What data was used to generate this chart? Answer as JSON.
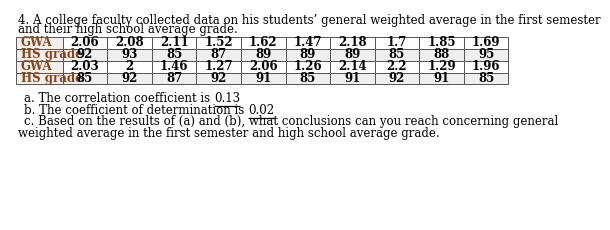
{
  "title_line1": "4. A college faculty collected data on his students’ general weighted average in the first semester",
  "title_line2": "and their high school average grade.",
  "row1_label": "GWA",
  "row2_label": "HS grade",
  "row3_label": "GWA",
  "row4_label": "HS grade",
  "row1_values": [
    "2.06",
    "2.08",
    "2.11",
    "1.52",
    "1.62",
    "1.47",
    "2.18",
    "1.7",
    "1.85",
    "1.69"
  ],
  "row2_values": [
    "92",
    "93",
    "85",
    "87",
    "89",
    "89",
    "89",
    "85",
    "88",
    "95"
  ],
  "row3_values": [
    "2.03",
    "2",
    "1.46",
    "1.27",
    "2.06",
    "1.26",
    "2.14",
    "2.2",
    "1.29",
    "1.96"
  ],
  "row4_values": [
    "85",
    "92",
    "87",
    "92",
    "91",
    "85",
    "91",
    "92",
    "91",
    "85"
  ],
  "note_a": "a. The correlation coefficient is ",
  "note_a_val": "0.13",
  "note_b": "b. The coefficient of determination is ",
  "note_b_val": "0.02",
  "note_c": "c. Based on the results of (a) and (b), what conclusions can you reach concerning general",
  "note_c2": "weighted average in the first semester and high school average grade.",
  "odd_row_bg": "#ffffff",
  "even_row_bg": "#efefef",
  "border_color": "#555555",
  "text_color": "#000000",
  "label_color": "#8B4513",
  "font_size": 8.5,
  "title_font_size": 8.5,
  "note_font_size": 8.5
}
